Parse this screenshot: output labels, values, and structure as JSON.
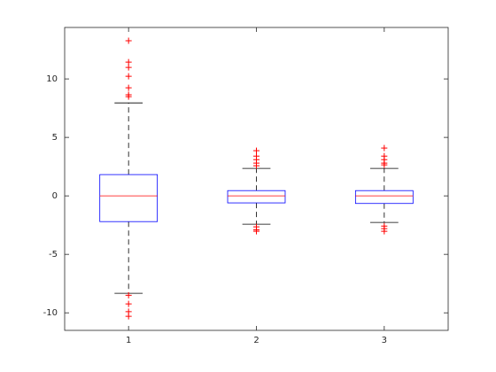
{
  "chart_data": {
    "type": "box",
    "categories": [
      "1",
      "2",
      "3"
    ],
    "boxes": [
      {
        "whisker_low": -8.33,
        "q1": -2.2,
        "median": 0,
        "q3": 1.82,
        "whisker_high": 7.95,
        "outliers": [
          13.26,
          11.44,
          10.98,
          10.23,
          9.24,
          8.64,
          8.48,
          -8.5,
          -9.24,
          -9.9,
          -10.3
        ]
      },
      {
        "whisker_low": -2.42,
        "q1": -0.6,
        "median": 0,
        "q3": 0.45,
        "whisker_high": 2.35,
        "outliers": [
          3.86,
          3.4,
          3.1,
          2.8,
          2.58,
          -2.65,
          -2.9,
          -3.03
        ]
      },
      {
        "whisker_low": -2.27,
        "q1": -0.65,
        "median": 0,
        "q3": 0.45,
        "whisker_high": 2.35,
        "outliers": [
          4.09,
          3.4,
          3.1,
          2.8,
          2.65,
          -2.58,
          -2.8,
          -3.03
        ]
      }
    ],
    "box_color": "#0000ff",
    "median_color": "#ff0000",
    "whisker_color": "#000000",
    "outlier_color": "#ff0000",
    "ylim": [
      -11.5,
      14.4
    ],
    "yticks": [
      -10,
      -5,
      0,
      5,
      10
    ]
  }
}
